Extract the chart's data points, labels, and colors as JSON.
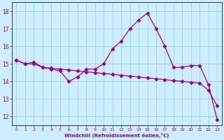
{
  "xlabel": "Windchill (Refroidissement éolien,°C)",
  "x": [
    0,
    1,
    2,
    3,
    4,
    5,
    6,
    7,
    8,
    9,
    10,
    11,
    12,
    13,
    14,
    15,
    16,
    17,
    18,
    19,
    20,
    21,
    22,
    23
  ],
  "line1_y": [
    15.2,
    15.0,
    15.1,
    14.8,
    14.7,
    14.6,
    14.0,
    14.25,
    14.7,
    14.7,
    15.0,
    15.85,
    16.3,
    17.0,
    17.5,
    17.9,
    17.0,
    16.0,
    14.8,
    14.8,
    14.9,
    14.9,
    13.8,
    11.8
  ],
  "line2_y": [
    15.2,
    15.0,
    15.0,
    14.8,
    14.75,
    14.7,
    14.65,
    14.6,
    14.55,
    14.5,
    14.45,
    14.4,
    14.35,
    14.3,
    14.25,
    14.2,
    14.15,
    14.1,
    14.05,
    14.0,
    13.95,
    13.9,
    13.5,
    12.6
  ],
  "line_color": "#990099",
  "bg_color": "#cceeff",
  "grid_color": "#99cccc",
  "axis_color": "#880088",
  "ylim": [
    11.5,
    18.5
  ],
  "yticks": [
    12,
    13,
    14,
    15,
    16,
    17,
    18
  ],
  "xlim": [
    -0.5,
    23.5
  ],
  "xticks": [
    0,
    1,
    2,
    3,
    4,
    5,
    6,
    7,
    8,
    9,
    10,
    11,
    12,
    13,
    14,
    15,
    16,
    17,
    18,
    19,
    20,
    21,
    22,
    23
  ]
}
